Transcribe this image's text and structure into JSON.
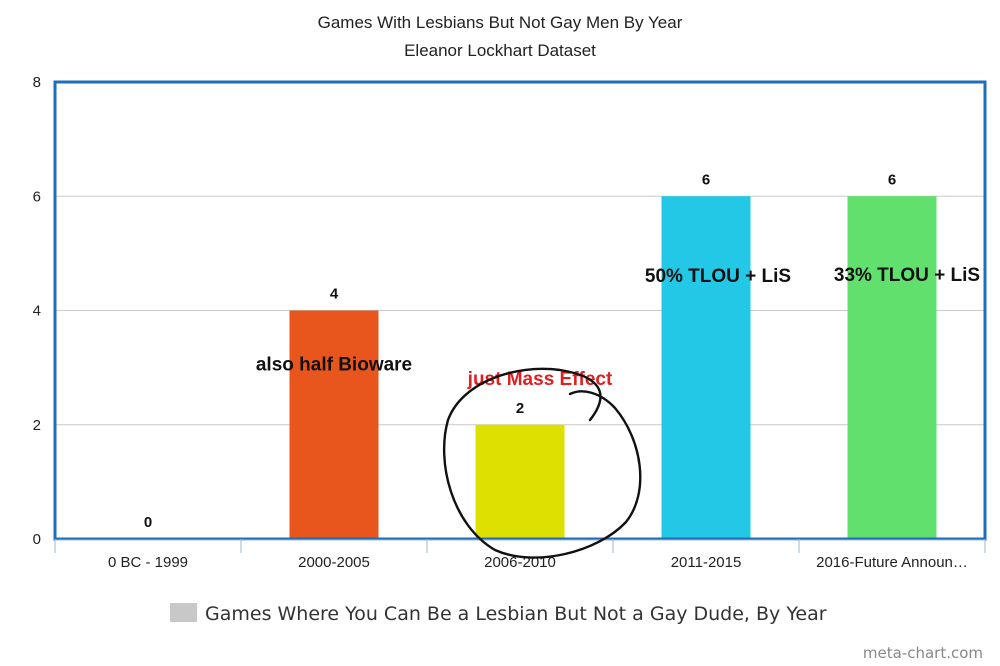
{
  "chart_data": {
    "type": "bar",
    "title": "Games With Lesbians But Not Gay Men By Year",
    "subtitle": "Eleanor Lockhart Dataset",
    "categories": [
      "0 BC - 1999",
      "2000-2005",
      "2006-2010",
      "2011-2015",
      "2016-Future Announ…"
    ],
    "series": [
      {
        "name": "Games Where You Can Be a Lesbian But Not a Gay Dude, By Year",
        "values": [
          0,
          4,
          2,
          6,
          6
        ],
        "colors": [
          "#c8c8c8",
          "#e8561e",
          "#dde000",
          "#22c8e5",
          "#62e06e"
        ]
      }
    ],
    "ylim": [
      0,
      8
    ],
    "yticks": [
      0,
      2,
      4,
      6,
      8
    ],
    "grid": true,
    "legend_position": "bottom",
    "legend_color": "#c8c8c8",
    "annotations": [
      {
        "category": "2000-2005",
        "text": "also half Bioware",
        "color": "#111111"
      },
      {
        "category": "2006-2010",
        "text": "just Mass Effect",
        "color": "#e02020"
      },
      {
        "category": "2011-2015",
        "text": "50% TLOU + LiS",
        "color": "#111111"
      },
      {
        "category": "2016-Future Announ…",
        "text": "33% TLOU + LiS",
        "color": "#111111"
      }
    ],
    "plot_border_color": "#1e6fb8"
  },
  "watermark": "meta-chart.com"
}
